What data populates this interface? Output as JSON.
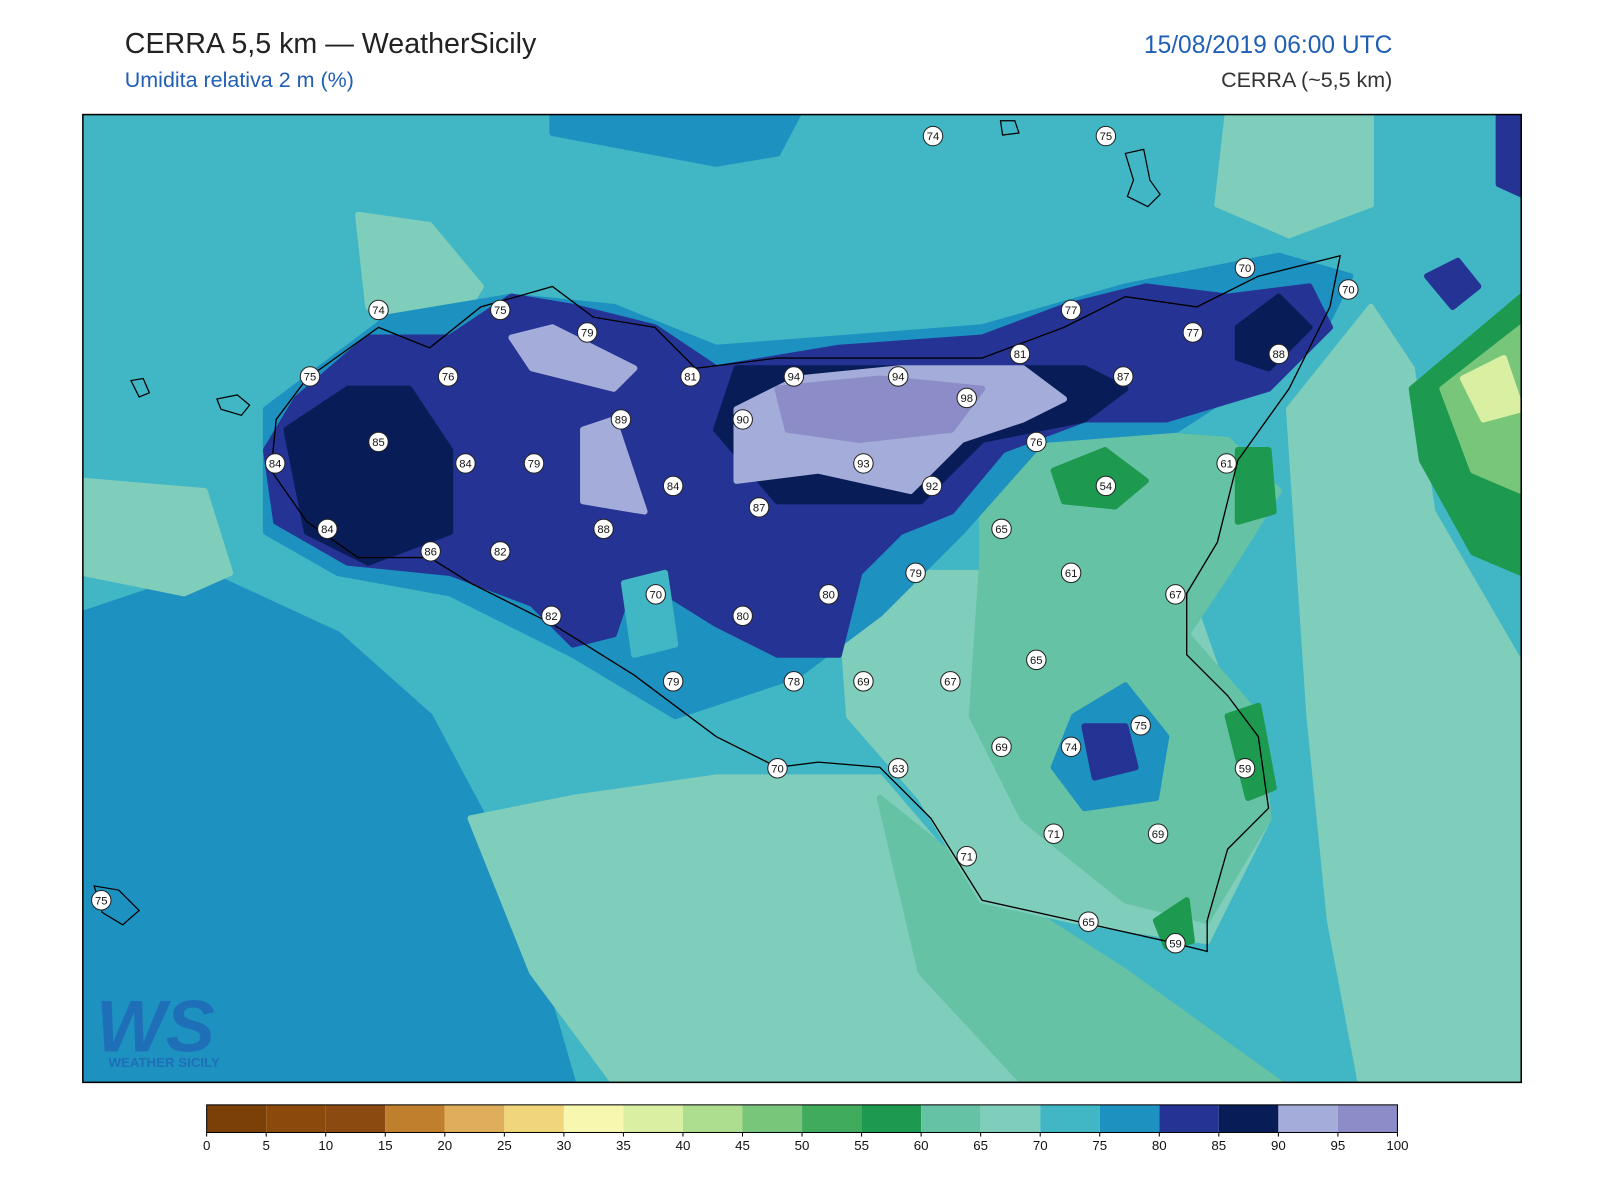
{
  "header": {
    "title": "CERRA 5,5 km — WeatherSicily",
    "subtitle": "Umidita relativa 2 m (%)",
    "date": "15/08/2019 06:00 UTC",
    "model": "CERRA (~5,5 km)"
  },
  "stations": [
    74,
    75,
    74,
    75,
    79,
    70,
    70,
    77,
    77,
    88,
    81,
    87,
    75,
    76,
    81,
    94,
    94,
    98,
    85,
    89,
    90,
    76,
    61,
    84,
    84,
    79,
    84,
    93,
    92,
    54,
    87,
    84,
    86,
    82,
    88,
    65,
    79,
    61,
    70,
    80,
    67,
    82,
    80,
    65,
    79,
    78,
    69,
    67,
    75,
    69,
    74,
    70,
    63,
    59,
    71,
    69,
    71,
    75,
    65,
    59
  ],
  "colorbar": {
    "ticks": [
      0,
      5,
      10,
      15,
      20,
      25,
      30,
      35,
      40,
      45,
      50,
      55,
      60,
      65,
      70,
      75,
      80,
      85,
      90,
      95,
      100
    ],
    "colors": [
      "#7a4008",
      "#8b4a0c",
      "#8b4a10",
      "#c07f2c",
      "#dfae5a",
      "#f0d57a",
      "#f7f7b0",
      "#d9f0a3",
      "#addd8e",
      "#78c679",
      "#41ab5d",
      "#1d9a50",
      "#66c2a4",
      "#7fcdbb",
      "#41b6c4",
      "#1d91c0",
      "#253494",
      "#081d58",
      "#a4acda",
      "#8c8cc8"
    ]
  },
  "logo": {
    "mark": "WS",
    "text": "WEATHER SICILY"
  }
}
